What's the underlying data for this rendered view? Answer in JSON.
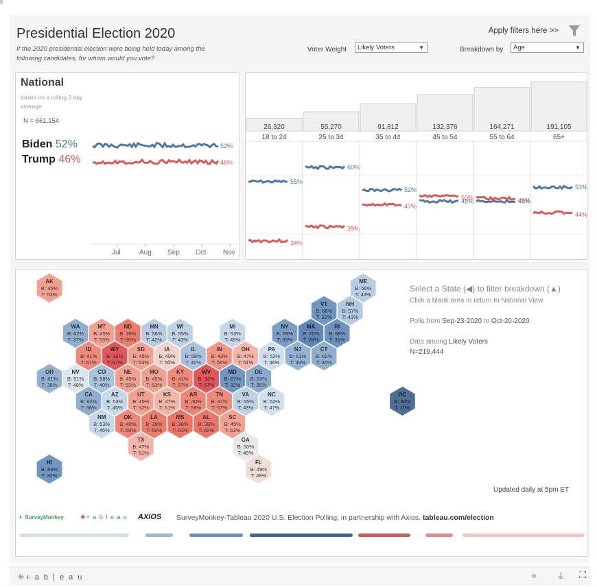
{
  "header": {
    "title": "Presidential Election 2020",
    "subtitle": "If the 2020 presidential election were being held today among the following candidates, for whom would you vote?",
    "filters_label": "Apply filters here >>",
    "voter_weight_label": "Voter Weight",
    "voter_weight_value": "Likely Voters",
    "breakdown_label": "Breakdown by",
    "breakdown_value": "Age"
  },
  "national": {
    "title": "National",
    "note": "based on a rolling 3 day average",
    "n": "N = 661,154",
    "biden_name": "Biden",
    "biden_pct": "52%",
    "trump_name": "Trump",
    "trump_pct": "46%",
    "biden_end": "52%",
    "trump_end": "46%",
    "months": [
      "Jul",
      "Aug",
      "Sep",
      "Oct",
      "Nov"
    ]
  },
  "colors": {
    "biden": "#4e79a7",
    "trump": "#e15759"
  },
  "breakdown": {
    "groups": [
      {
        "label": "18 to 24",
        "n": "26,320",
        "b": "55%",
        "t": "34%",
        "bv": 55,
        "tv": 34
      },
      {
        "label": "25 to 34",
        "n": "55,270",
        "b": "60%",
        "t": "39%",
        "bv": 60,
        "tv": 39
      },
      {
        "label": "35 to 44",
        "n": "91,812",
        "b": "52%",
        "t": "47%",
        "bv": 52,
        "tv": 47
      },
      {
        "label": "45 to 54",
        "n": "132,376",
        "b": "48%",
        "t": "50%",
        "bv": 48,
        "tv": 50
      },
      {
        "label": "55 to 64",
        "n": "164,271",
        "b": "48%",
        "t": "49%",
        "bv": 48,
        "tv": 49
      },
      {
        "label": "65+",
        "n": "191,105",
        "b": "53%",
        "t": "44%",
        "bv": 53,
        "tv": 44
      }
    ]
  },
  "map": {
    "info_select": "Select a State (◀) to filter breakdown (▲)",
    "info_click": "Click a blank area to return to National View",
    "polls_from": "Polls from",
    "polls_start": "Sep-23-2020",
    "polls_to": "to",
    "polls_end": "Oct-20-2020",
    "data_among": "Data among",
    "data_group": "Likely Voters",
    "n": "N=219,444",
    "updated": "Updated daily at 5pm ET",
    "states": [
      {
        "s": "AK",
        "b": "45%",
        "t": "53%",
        "c": 0,
        "r": 0,
        "fill": "#f4a090"
      },
      {
        "s": "ME",
        "b": "56%",
        "t": "43%",
        "c": 12,
        "r": 0,
        "fill": "#b8cde3"
      },
      {
        "s": "VT",
        "b": "66%",
        "t": "32%",
        "c": 10,
        "r": 1,
        "fill": "#7097c2"
      },
      {
        "s": "NH",
        "b": "57%",
        "t": "42%",
        "c": 11,
        "r": 1,
        "fill": "#b3c9e1"
      },
      {
        "s": "WA",
        "b": "62%",
        "t": "37%",
        "c": 1,
        "r": 2,
        "fill": "#8faed0"
      },
      {
        "s": "MT",
        "b": "45%",
        "t": "53%",
        "c": 2,
        "r": 2,
        "fill": "#f4a090"
      },
      {
        "s": "ND",
        "b": "39%",
        "t": "60%",
        "c": 3,
        "r": 2,
        "fill": "#ec7b6d"
      },
      {
        "s": "MN",
        "b": "56%",
        "t": "42%",
        "c": 4,
        "r": 2,
        "fill": "#b8cde3"
      },
      {
        "s": "WI",
        "b": "55%",
        "t": "43%",
        "c": 5,
        "r": 2,
        "fill": "#bed1e5"
      },
      {
        "s": "MI",
        "b": "53%",
        "t": "45%",
        "c": 7,
        "r": 2,
        "fill": "#c7d8ea"
      },
      {
        "s": "NY",
        "b": "65%",
        "t": "33%",
        "c": 9,
        "r": 2,
        "fill": "#7a9ec6"
      },
      {
        "s": "MA",
        "b": "70%",
        "t": "28%",
        "c": 10,
        "r": 2,
        "fill": "#6288b9"
      },
      {
        "s": "RI",
        "b": "68%",
        "t": "31%",
        "c": 11,
        "r": 2,
        "fill": "#6d93c0"
      },
      {
        "s": "ID",
        "b": "41%",
        "t": "57%",
        "c": 1,
        "r": 3,
        "fill": "#ef8a7b"
      },
      {
        "s": "WY",
        "b": "32%",
        "t": "67%",
        "c": 2,
        "r": 3,
        "fill": "#e15759"
      },
      {
        "s": "SD",
        "b": "45%",
        "t": "53%",
        "c": 3,
        "r": 3,
        "fill": "#f4a090"
      },
      {
        "s": "IA",
        "b": "49%",
        "t": "50%",
        "c": 4,
        "r": 3,
        "fill": "#f1d3cc"
      },
      {
        "s": "IL",
        "b": "58%",
        "t": "40%",
        "c": 5,
        "r": 3,
        "fill": "#a9c2de"
      },
      {
        "s": "IN",
        "b": "43%",
        "t": "55%",
        "c": 6,
        "r": 3,
        "fill": "#f29585"
      },
      {
        "s": "OH",
        "b": "47%",
        "t": "51%",
        "c": 7,
        "r": 3,
        "fill": "#f5b5a8"
      },
      {
        "s": "PA",
        "b": "52%",
        "t": "46%",
        "c": 8,
        "r": 3,
        "fill": "#d0deed"
      },
      {
        "s": "NJ",
        "b": "61%",
        "t": "36%",
        "c": 9,
        "r": 3,
        "fill": "#94b2d3"
      },
      {
        "s": "CT",
        "b": "62%",
        "t": "36%",
        "c": 10,
        "r": 3,
        "fill": "#8faed0"
      },
      {
        "s": "OR",
        "b": "61%",
        "t": "38%",
        "c": 0,
        "r": 4,
        "fill": "#94b2d3"
      },
      {
        "s": "NV",
        "b": "51%",
        "t": "48%",
        "c": 1,
        "r": 4,
        "fill": "#dce6f0"
      },
      {
        "s": "CO",
        "b": "58%",
        "t": "40%",
        "c": 2,
        "r": 4,
        "fill": "#a9c2de"
      },
      {
        "s": "NE",
        "b": "45%",
        "t": "53%",
        "c": 3,
        "r": 4,
        "fill": "#f4a090"
      },
      {
        "s": "MO",
        "b": "45%",
        "t": "53%",
        "c": 4,
        "r": 4,
        "fill": "#f4a090"
      },
      {
        "s": "KY",
        "b": "41%",
        "t": "57%",
        "c": 5,
        "r": 4,
        "fill": "#ef8a7b"
      },
      {
        "s": "WV",
        "b": "32%",
        "t": "67%",
        "c": 6,
        "r": 4,
        "fill": "#e15759"
      },
      {
        "s": "MD",
        "b": "67%",
        "t": "32%",
        "c": 7,
        "r": 4,
        "fill": "#7097c2"
      },
      {
        "s": "DE",
        "b": "63%",
        "t": "35%",
        "c": 8,
        "r": 4,
        "fill": "#89a9cd"
      },
      {
        "s": "CA",
        "b": "62%",
        "t": "36%",
        "c": 1,
        "r": 5,
        "fill": "#8faed0"
      },
      {
        "s": "AZ",
        "b": "53%",
        "t": "45%",
        "c": 2,
        "r": 5,
        "fill": "#c7d8ea"
      },
      {
        "s": "UT",
        "b": "45%",
        "t": "52%",
        "c": 3,
        "r": 5,
        "fill": "#f4a090"
      },
      {
        "s": "KS",
        "b": "47%",
        "t": "51%",
        "c": 4,
        "r": 5,
        "fill": "#f5b5a8"
      },
      {
        "s": "AR",
        "b": "40%",
        "t": "58%",
        "c": 5,
        "r": 5,
        "fill": "#ee8577"
      },
      {
        "s": "TN",
        "b": "41%",
        "t": "57%",
        "c": 6,
        "r": 5,
        "fill": "#ef8a7b"
      },
      {
        "s": "VA",
        "b": "55%",
        "t": "43%",
        "c": 7,
        "r": 5,
        "fill": "#bed1e5"
      },
      {
        "s": "NC",
        "b": "52%",
        "t": "47%",
        "c": 8,
        "r": 5,
        "fill": "#d0deed"
      },
      {
        "s": "NM",
        "b": "53%",
        "t": "45%",
        "c": 2,
        "r": 6,
        "fill": "#c7d8ea"
      },
      {
        "s": "OK",
        "b": "40%",
        "t": "58%",
        "c": 3,
        "r": 6,
        "fill": "#ee8577"
      },
      {
        "s": "LA",
        "b": "39%",
        "t": "59%",
        "c": 4,
        "r": 6,
        "fill": "#ec7b6d"
      },
      {
        "s": "MS",
        "b": "38%",
        "t": "61%",
        "c": 5,
        "r": 6,
        "fill": "#ea7568"
      },
      {
        "s": "AL",
        "b": "38%",
        "t": "60%",
        "c": 6,
        "r": 6,
        "fill": "#ea7568"
      },
      {
        "s": "SC",
        "b": "45%",
        "t": "53%",
        "c": 7,
        "r": 6,
        "fill": "#f4a090"
      },
      {
        "s": "TX",
        "b": "47%",
        "t": "51%",
        "c": 3,
        "r": 7,
        "fill": "#f5b5a8"
      },
      {
        "s": "GA",
        "b": "50%",
        "t": "49%",
        "c": 7,
        "r": 7,
        "fill": "#e8e8e8"
      },
      {
        "s": "HI",
        "b": "66%",
        "t": "32%",
        "c": 0,
        "r": 8,
        "fill": "#7097c2"
      },
      {
        "s": "FL",
        "b": "49%",
        "t": "49%",
        "c": 8,
        "r": 8,
        "fill": "#efdcd7"
      },
      {
        "s": "DC",
        "b": "88%",
        "t": "10%",
        "c": 13,
        "r": 5,
        "fill": "#4f6f99"
      }
    ]
  },
  "footer": {
    "surveymonkey": "SurveyMonkey",
    "tableau": "+ a b l e a u",
    "axios": "AXIOS",
    "credit": "SurveyMonkey-Tableau 2020 U.S. Election Polling, in partnership with Axios.",
    "link": "tableau.com/election",
    "legend_colors": [
      "#d6e0ec",
      "#9fb7d6",
      "#6b8fbd",
      "#3f6594",
      "#d05a5c",
      "#e08b8a",
      "#f2c7c6"
    ]
  },
  "bottombar": {
    "logo": "+ a b | e a u"
  }
}
